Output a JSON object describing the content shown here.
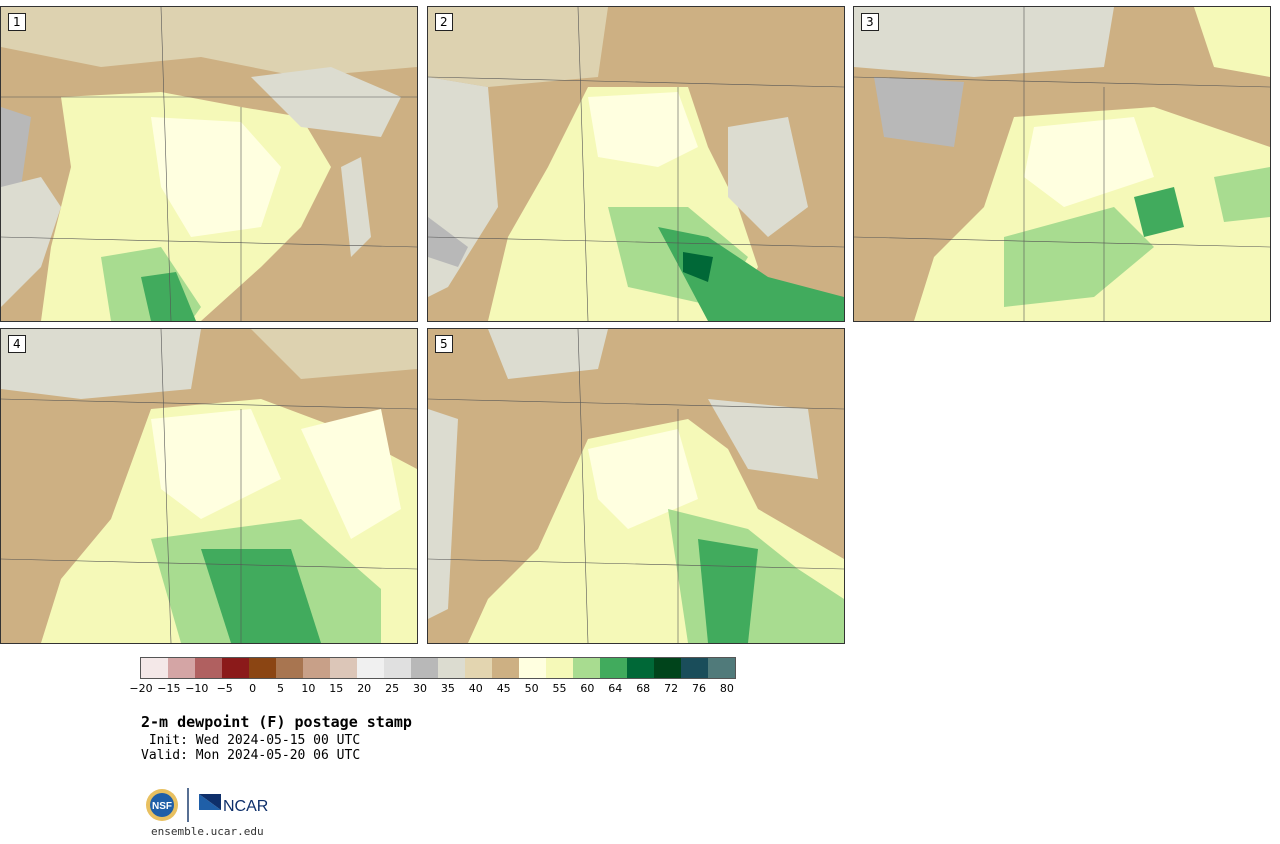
{
  "panels": [
    {
      "label": "1"
    },
    {
      "label": "2"
    },
    {
      "label": "3"
    },
    {
      "label": "4"
    },
    {
      "label": "5"
    }
  ],
  "colorbar": {
    "colors": [
      "#f4e8e8",
      "#d4a5a5",
      "#b06060",
      "#8b1a1a",
      "#8b4513",
      "#a87550",
      "#c8a088",
      "#dcc6b8",
      "#f0f0f0",
      "#e0e0e0",
      "#b8b8b8",
      "#dcdcd0",
      "#e3d5b0",
      "#cdb083",
      "#ffffe0",
      "#f5f9b8",
      "#a8dc90",
      "#41ab5d",
      "#006837",
      "#00441b",
      "#1a4d5a",
      "#507a7a"
    ],
    "ticks": [
      "−20",
      "−15",
      "−10",
      "−5",
      "0",
      "5",
      "10",
      "15",
      "20",
      "25",
      "30",
      "35",
      "40",
      "45",
      "50",
      "55",
      "60",
      "64",
      "68",
      "72",
      "76",
      "80"
    ]
  },
  "title": {
    "main": "2-m dewpoint (F) postage stamp",
    "init": " Init: Wed 2024-05-15 00 UTC",
    "valid": "Valid: Mon 2024-05-20 06 UTC"
  },
  "logos": {
    "nsf": "NSF",
    "ncar": "NCAR"
  },
  "site": "ensemble.ucar.edu"
}
